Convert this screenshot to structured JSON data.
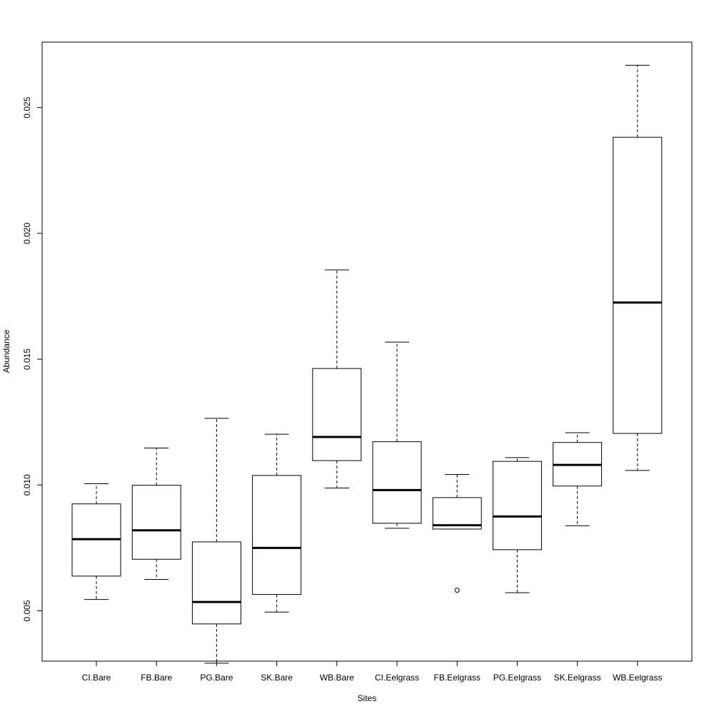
{
  "chart_data": {
    "type": "boxplot",
    "xlabel": "Sites",
    "ylabel": "Abundance",
    "ylim": [
      0.003,
      0.0276
    ],
    "yticks": [
      0.005,
      0.01,
      0.015,
      0.02,
      0.025
    ],
    "ytick_labels": [
      "0.005",
      "0.010",
      "0.015",
      "0.020",
      "0.025"
    ],
    "categories": [
      "CI.Bare",
      "FB.Bare",
      "PG.Bare",
      "SK.Bare",
      "WB.Bare",
      "CI.Eelgrass",
      "FB.Eelgrass",
      "PG.Eelgrass",
      "SK.Eelgrass",
      "WB.Eelgrass"
    ],
    "boxes": [
      {
        "min": 0.00545,
        "q1": 0.00638,
        "median": 0.00785,
        "q3": 0.00925,
        "max": 0.01005,
        "outliers": []
      },
      {
        "min": 0.00625,
        "q1": 0.00705,
        "median": 0.0082,
        "q3": 0.00999,
        "max": 0.01147,
        "outliers": []
      },
      {
        "min": 0.00292,
        "q1": 0.00448,
        "median": 0.00535,
        "q3": 0.00774,
        "max": 0.01265,
        "outliers": []
      },
      {
        "min": 0.00495,
        "q1": 0.00565,
        "median": 0.0075,
        "q3": 0.01038,
        "max": 0.01202,
        "outliers": []
      },
      {
        "min": 0.00988,
        "q1": 0.01097,
        "median": 0.01191,
        "q3": 0.01463,
        "max": 0.01855,
        "outliers": []
      },
      {
        "min": 0.00828,
        "q1": 0.00848,
        "median": 0.0098,
        "q3": 0.01172,
        "max": 0.01568,
        "outliers": []
      },
      {
        "min": 0.00825,
        "q1": 0.00825,
        "median": 0.0084,
        "q3": 0.0095,
        "max": 0.01042,
        "outliers": [
          0.00582
        ]
      },
      {
        "min": 0.00572,
        "q1": 0.00743,
        "median": 0.00875,
        "q3": 0.01094,
        "max": 0.01109,
        "outliers": []
      },
      {
        "min": 0.00838,
        "q1": 0.00996,
        "median": 0.0108,
        "q3": 0.01169,
        "max": 0.01208,
        "outliers": []
      },
      {
        "min": 0.01058,
        "q1": 0.01205,
        "median": 0.01725,
        "q3": 0.02382,
        "max": 0.02668,
        "outliers": []
      }
    ],
    "legend": "none",
    "grid": false
  }
}
